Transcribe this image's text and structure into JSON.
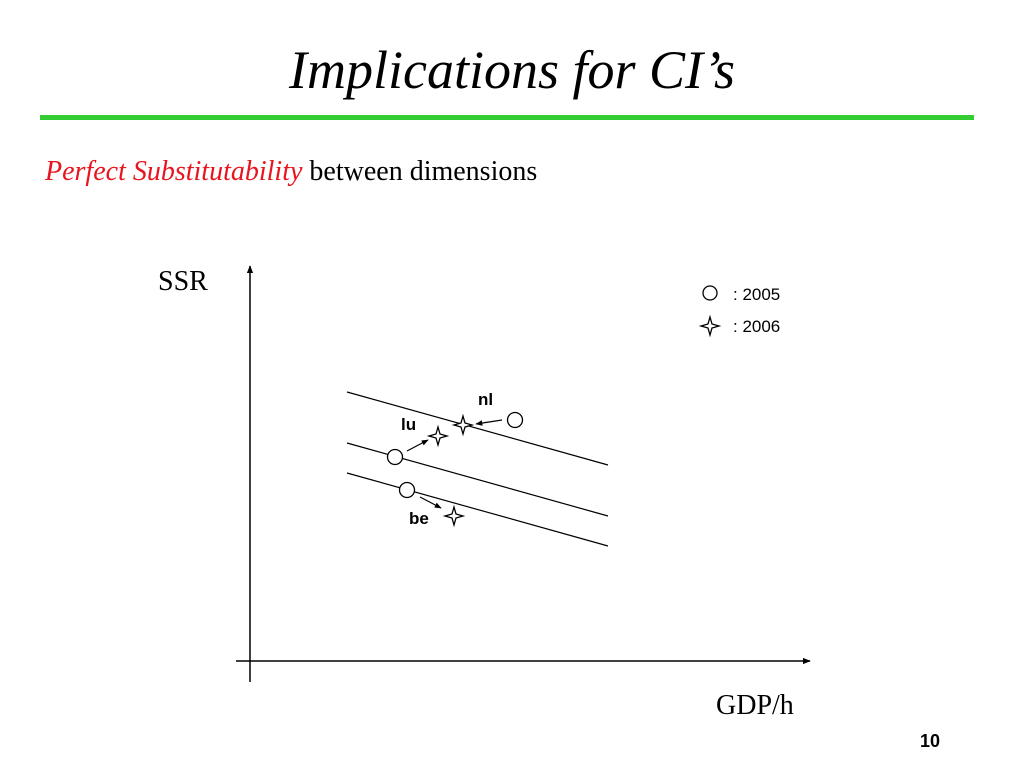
{
  "slide": {
    "title": "Implications for CI’s",
    "subtitle_emphasis": "Perfect Substitutability",
    "subtitle_rest": " between dimensions",
    "page_number": "10"
  },
  "colors": {
    "title_rule": "#33cc33",
    "emphasis": "#e8141e",
    "ink": "#000000"
  },
  "diagram": {
    "y_axis_label": "SSR",
    "x_axis_label": "GDP/h",
    "legend": [
      {
        "symbol": "circle",
        "label": ": 2005"
      },
      {
        "symbol": "four-point-star",
        "label": ": 2006"
      }
    ],
    "countries": [
      {
        "code": "nl",
        "from": "2005",
        "to": "2006"
      },
      {
        "code": "lu",
        "from": "2005",
        "to": "2006"
      },
      {
        "code": "be",
        "from": "2005",
        "to": "2006"
      }
    ],
    "iso_lines": 3
  }
}
